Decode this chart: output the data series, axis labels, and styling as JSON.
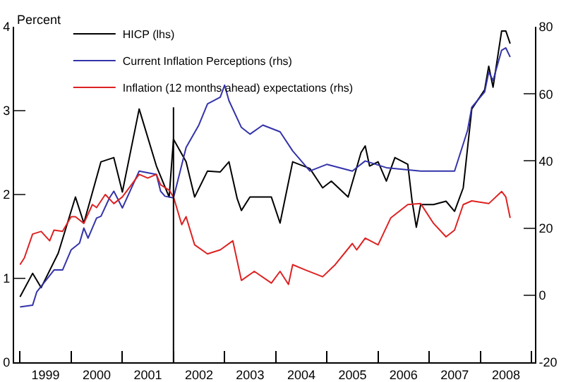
{
  "chart_data": {
    "type": "line",
    "ylabel": "Percent",
    "xlim": [
      "1998-11-20",
      "2009-01-25"
    ],
    "xticks": [
      {
        "value": "1999-01-01",
        "label": null
      },
      {
        "value": "1999-07-02",
        "label": "1999"
      },
      {
        "value": "2000-01-01",
        "label": null
      },
      {
        "value": "2000-07-02",
        "label": "2000"
      },
      {
        "value": "2001-01-01",
        "label": null
      },
      {
        "value": "2001-07-02",
        "label": "2001"
      },
      {
        "value": "2002-01-01",
        "label": null
      },
      {
        "value": "2002-07-02",
        "label": "2002"
      },
      {
        "value": "2003-01-01",
        "label": null
      },
      {
        "value": "2003-07-02",
        "label": "2003"
      },
      {
        "value": "2004-01-01",
        "label": null
      },
      {
        "value": "2004-07-02",
        "label": "2004"
      },
      {
        "value": "2005-01-01",
        "label": null
      },
      {
        "value": "2005-07-02",
        "label": "2005"
      },
      {
        "value": "2006-01-01",
        "label": null
      },
      {
        "value": "2006-07-02",
        "label": "2006"
      },
      {
        "value": "2007-01-01",
        "label": null
      },
      {
        "value": "2007-07-02",
        "label": "2007"
      },
      {
        "value": "2008-01-01",
        "label": null
      },
      {
        "value": "2008-07-02",
        "label": "2008"
      },
      {
        "value": "2009-01-01",
        "label": null
      }
    ],
    "ylim": [
      0,
      4
    ],
    "yticks": [
      0,
      1,
      2,
      3,
      4
    ],
    "y2lim": [
      -20,
      80
    ],
    "y2ticks": [
      -20,
      0,
      20,
      40,
      60,
      80
    ],
    "legend": "top left",
    "ref_lines": [
      {
        "axis": "x",
        "value": "2002-01-01",
        "color": "#000000"
      }
    ],
    "series": [
      {
        "name": "HICP (lhs)",
        "color": "#000000",
        "x": [
          "1999-01",
          "1999-04",
          "1999-06",
          "1999-10",
          "2000-02",
          "2000-04",
          "2000-08",
          "2000-11",
          "2001-01",
          "2001-05",
          "2001-09",
          "2001-12",
          "2002-01",
          "2002-04",
          "2002-06",
          "2002-09",
          "2002-12",
          "2003-02",
          "2003-04",
          "2003-05",
          "2003-07",
          "2003-12",
          "2004-02",
          "2004-05",
          "2004-09",
          "2004-12",
          "2005-02",
          "2005-06",
          "2005-09",
          "2005-10",
          "2005-11",
          "2006-01",
          "2006-03",
          "2006-05",
          "2006-08",
          "2006-09",
          "2006-10",
          "2006-11",
          "2007-02",
          "2007-05",
          "2007-07",
          "2007-09",
          "2007-11",
          "2008-02",
          "2008-03",
          "2008-04",
          "2008-06",
          "2008-07",
          "2008-08"
        ],
        "values": [
          0.78,
          1.06,
          0.89,
          1.3,
          1.97,
          1.66,
          2.39,
          2.44,
          2.03,
          3.02,
          2.34,
          1.97,
          2.66,
          2.39,
          1.97,
          2.28,
          2.27,
          2.39,
          1.95,
          1.81,
          1.97,
          1.97,
          1.66,
          2.39,
          2.31,
          2.08,
          2.16,
          1.97,
          2.5,
          2.58,
          2.34,
          2.39,
          2.16,
          2.44,
          2.36,
          1.92,
          1.61,
          1.88,
          1.88,
          1.92,
          1.8,
          2.08,
          3.02,
          3.25,
          3.53,
          3.28,
          3.95,
          3.95,
          3.8
        ]
      },
      {
        "name": "Current Inflation Perceptions (rhs)",
        "color": "#3333aa",
        "axis": "y2",
        "x": [
          "1999-01",
          "1999-04",
          "1999-05",
          "1999-09",
          "1999-11",
          "2000-01",
          "2000-03",
          "2000-04",
          "2000-05",
          "2000-07",
          "2000-08",
          "2000-10",
          "2000-11",
          "2001-01",
          "2001-05",
          "2001-09",
          "2001-10",
          "2001-11",
          "2002-01",
          "2002-04",
          "2002-07",
          "2002-09",
          "2002-12",
          "2003-01",
          "2003-02",
          "2003-05",
          "2003-07",
          "2003-10",
          "2004-02",
          "2004-05",
          "2004-09",
          "2005-01",
          "2005-07",
          "2005-10",
          "2006-03",
          "2006-11",
          "2007-03",
          "2007-07",
          "2007-10",
          "2007-11",
          "2008-02",
          "2008-03",
          "2008-04",
          "2008-06",
          "2008-07",
          "2008-08"
        ],
        "values": [
          -3.5,
          -3,
          1,
          7.5,
          7.5,
          13.5,
          15.5,
          20,
          17,
          23,
          23.5,
          29,
          31,
          26,
          37,
          36,
          31,
          29.5,
          29,
          44,
          50.7,
          57,
          59,
          62.6,
          58,
          50,
          48,
          50.7,
          48.7,
          43,
          37,
          39,
          37,
          40,
          38,
          37,
          37,
          37,
          49,
          56,
          60.6,
          66.5,
          64,
          73,
          73.7,
          71
        ]
      },
      {
        "name": "Inflation (12 months ahead) expectations (rhs)",
        "color": "#dd2222",
        "axis": "y2",
        "x": [
          "1999-01",
          "1999-02",
          "1999-04",
          "1999-06",
          "1999-08",
          "1999-09",
          "1999-11",
          "2000-01",
          "2000-02",
          "2000-04",
          "2000-06",
          "2000-07",
          "2000-09",
          "2000-11",
          "2001-01",
          "2001-05",
          "2001-07",
          "2001-09",
          "2001-10",
          "2001-12",
          "2002-01",
          "2002-03",
          "2002-04",
          "2002-06",
          "2002-09",
          "2002-12",
          "2003-03",
          "2003-05",
          "2003-08",
          "2003-12",
          "2004-02",
          "2004-04",
          "2004-05",
          "2004-08",
          "2004-12",
          "2005-03",
          "2005-07",
          "2005-08",
          "2005-10",
          "2006-01",
          "2006-04",
          "2006-08",
          "2006-11",
          "2007-02",
          "2007-05",
          "2007-07",
          "2007-09",
          "2007-11",
          "2008-03",
          "2008-06",
          "2008-07",
          "2008-08"
        ],
        "values": [
          9.1,
          11.1,
          18.2,
          19,
          16.2,
          19.4,
          19,
          23.4,
          23.4,
          21.4,
          27,
          26.1,
          30,
          27.3,
          29.3,
          36,
          34.9,
          36,
          32.9,
          31.3,
          29.3,
          21,
          23.4,
          15,
          12.3,
          13.5,
          16.2,
          4.4,
          7.1,
          3.6,
          7.1,
          3.2,
          9.1,
          7.5,
          5.5,
          9.1,
          15.4,
          13.5,
          17,
          15,
          23,
          27,
          27.3,
          21.4,
          17.4,
          19.4,
          27,
          28.1,
          27.3,
          30.9,
          29.3,
          23
        ]
      }
    ]
  }
}
